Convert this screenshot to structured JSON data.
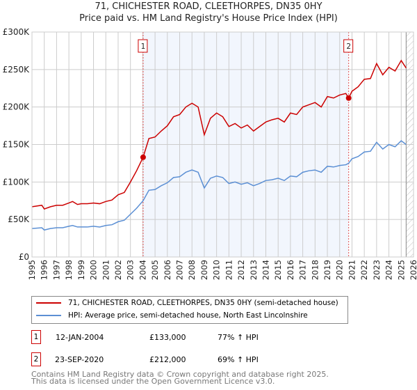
{
  "chart_data": {
    "type": "line",
    "title": "71, CHICHESTER ROAD, CLEETHORPES, DN35 0HY",
    "subtitle": "Price paid vs. HM Land Registry's House Price Index (HPI)",
    "xlim": [
      1995,
      2026
    ],
    "ylim": [
      0,
      300000
    ],
    "x_ticks": [
      "1995",
      "1996",
      "1997",
      "1998",
      "1999",
      "2000",
      "2001",
      "2002",
      "2003",
      "2004",
      "2005",
      "2006",
      "2007",
      "2008",
      "2009",
      "2010",
      "2011",
      "2012",
      "2013",
      "2014",
      "2015",
      "2016",
      "2017",
      "2018",
      "2019",
      "2020",
      "2021",
      "2022",
      "2023",
      "2024",
      "2025",
      "2026"
    ],
    "y_ticks": [
      {
        "v": 0,
        "label": "£0"
      },
      {
        "v": 50000,
        "label": "£50K"
      },
      {
        "v": 100000,
        "label": "£100K"
      },
      {
        "v": 150000,
        "label": "£150K"
      },
      {
        "v": 200000,
        "label": "£200K"
      },
      {
        "v": 250000,
        "label": "£250K"
      },
      {
        "v": 300000,
        "label": "£300K"
      }
    ],
    "grid": true,
    "series": [
      {
        "name": "71, CHICHESTER ROAD, CLEETHORPES, DN35 0HY (semi-detached house)",
        "color": "#cc0000",
        "x": [
          1995,
          1995.8,
          1996,
          1996.5,
          1997,
          1997.5,
          1998,
          1998.3,
          1998.7,
          1999,
          1999.5,
          2000,
          2000.5,
          2001,
          2001.5,
          2002,
          2002.5,
          2003,
          2003.5,
          2004.03,
          2004.5,
          2005,
          2005.5,
          2006,
          2006.5,
          2007,
          2007.5,
          2008,
          2008.5,
          2009,
          2009.5,
          2010,
          2010.5,
          2011,
          2011.5,
          2012,
          2012.5,
          2013,
          2013.5,
          2014,
          2014.5,
          2015,
          2015.5,
          2016,
          2016.5,
          2017,
          2017.5,
          2018,
          2018.5,
          2019,
          2019.5,
          2020,
          2020.5,
          2020.73,
          2021,
          2021.5,
          2022,
          2022.5,
          2023,
          2023.5,
          2024,
          2024.5,
          2025,
          2025.4
        ],
        "y": [
          67000,
          69000,
          64000,
          67000,
          69000,
          69000,
          72000,
          74000,
          70000,
          71000,
          71000,
          72000,
          71000,
          74000,
          76000,
          83000,
          86000,
          100000,
          115000,
          133000,
          158000,
          160000,
          168000,
          175000,
          187000,
          190000,
          200000,
          205000,
          200000,
          163000,
          185000,
          192000,
          187000,
          174000,
          178000,
          172000,
          176000,
          168000,
          174000,
          180000,
          183000,
          185000,
          180000,
          192000,
          190000,
          200000,
          203000,
          206000,
          200000,
          214000,
          212000,
          216000,
          218000,
          212000,
          221000,
          227000,
          237000,
          238000,
          258000,
          243000,
          253000,
          248000,
          262000,
          252000
        ]
      },
      {
        "name": "HPI: Average price, semi-detached house, North East Lincolnshire",
        "color": "#5b8fd4",
        "x": [
          1995,
          1995.8,
          1996,
          1996.5,
          1997,
          1997.5,
          1998,
          1998.3,
          1998.7,
          1999,
          1999.5,
          2000,
          2000.5,
          2001,
          2001.5,
          2002,
          2002.5,
          2003,
          2003.5,
          2004.03,
          2004.5,
          2005,
          2005.5,
          2006,
          2006.5,
          2007,
          2007.5,
          2008,
          2008.5,
          2009,
          2009.5,
          2010,
          2010.5,
          2011,
          2011.5,
          2012,
          2012.5,
          2013,
          2013.5,
          2014,
          2014.5,
          2015,
          2015.5,
          2016,
          2016.5,
          2017,
          2017.5,
          2018,
          2018.5,
          2019,
          2019.5,
          2020,
          2020.5,
          2020.73,
          2021,
          2021.5,
          2022,
          2022.5,
          2023,
          2023.5,
          2024,
          2024.5,
          2025,
          2025.4
        ],
        "y": [
          38000,
          39000,
          36000,
          38000,
          39000,
          39000,
          41000,
          42000,
          40000,
          40000,
          40000,
          41000,
          40000,
          42000,
          43000,
          47000,
          49000,
          57000,
          65000,
          75000,
          89000,
          90000,
          95000,
          99000,
          106000,
          107000,
          113000,
          116000,
          113000,
          92000,
          105000,
          108000,
          106000,
          98000,
          100000,
          97000,
          99000,
          95000,
          98000,
          102000,
          103000,
          105000,
          102000,
          108000,
          107000,
          113000,
          115000,
          116000,
          113000,
          121000,
          120000,
          122000,
          123000,
          125000,
          131000,
          134000,
          140000,
          141000,
          153000,
          144000,
          150000,
          147000,
          155000,
          150000
        ]
      }
    ],
    "sales": [
      {
        "id": "1",
        "x": 2004.03,
        "y": 133000,
        "date": "12-JAN-2004",
        "price": "£133,000",
        "hpi": "77% ↑ HPI"
      },
      {
        "id": "2",
        "x": 2020.73,
        "y": 212000,
        "date": "23-SEP-2020",
        "price": "£212,000",
        "hpi": "69% ↑ HPI"
      }
    ],
    "shaded_range": [
      2004.03,
      2020.73
    ],
    "forecast_from": 2025.4
  },
  "footer": [
    "Contains HM Land Registry data © Crown copyright and database right 2025.",
    "This data is licensed under the Open Government Licence v3.0."
  ]
}
